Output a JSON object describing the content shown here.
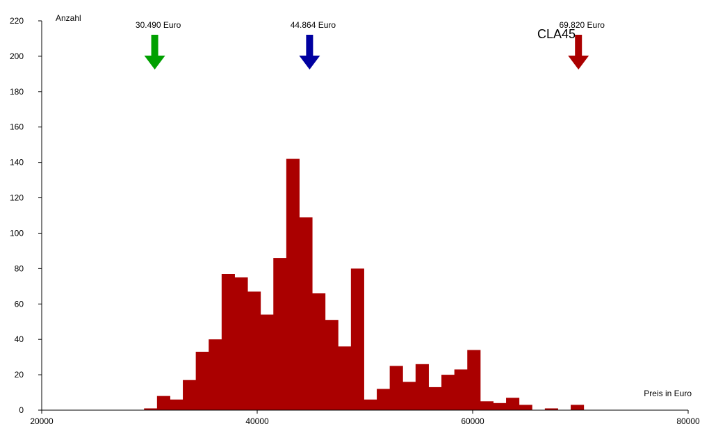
{
  "chart_data": {
    "type": "bar",
    "title": "",
    "model_label": "CLA45",
    "xlabel": "Preis in Euro",
    "ylabel": "Anzahl",
    "xlim": [
      20000,
      80000
    ],
    "ylim": [
      0,
      220
    ],
    "x_ticks": [
      20000,
      40000,
      60000,
      80000
    ],
    "y_ticks": [
      0,
      20,
      40,
      60,
      80,
      100,
      120,
      140,
      160,
      180,
      200,
      220
    ],
    "bin_width": 1200,
    "bar_color": "#aa0000",
    "bins": [
      {
        "x0": 29500,
        "value": 1
      },
      {
        "x0": 30700,
        "value": 8
      },
      {
        "x0": 31900,
        "value": 6
      },
      {
        "x0": 33100,
        "value": 17
      },
      {
        "x0": 34300,
        "value": 33
      },
      {
        "x0": 35500,
        "value": 40
      },
      {
        "x0": 36700,
        "value": 77
      },
      {
        "x0": 37900,
        "value": 75
      },
      {
        "x0": 39100,
        "value": 67
      },
      {
        "x0": 40300,
        "value": 54
      },
      {
        "x0": 41500,
        "value": 86
      },
      {
        "x0": 42700,
        "value": 142
      },
      {
        "x0": 43900,
        "value": 109
      },
      {
        "x0": 45100,
        "value": 66
      },
      {
        "x0": 46300,
        "value": 51
      },
      {
        "x0": 47500,
        "value": 36
      },
      {
        "x0": 48700,
        "value": 80
      },
      {
        "x0": 49900,
        "value": 6
      },
      {
        "x0": 51100,
        "value": 12
      },
      {
        "x0": 52300,
        "value": 25
      },
      {
        "x0": 53500,
        "value": 16
      },
      {
        "x0": 54700,
        "value": 26
      },
      {
        "x0": 55900,
        "value": 13
      },
      {
        "x0": 57100,
        "value": 20
      },
      {
        "x0": 58300,
        "value": 23
      },
      {
        "x0": 59500,
        "value": 34
      },
      {
        "x0": 60700,
        "value": 5
      },
      {
        "x0": 61900,
        "value": 4
      },
      {
        "x0": 63100,
        "value": 7
      },
      {
        "x0": 64300,
        "value": 3
      },
      {
        "x0": 65500,
        "value": 0
      },
      {
        "x0": 66700,
        "value": 1
      },
      {
        "x0": 67900,
        "value": 0
      },
      {
        "x0": 69100,
        "value": 3
      }
    ],
    "markers": [
      {
        "x": 30490,
        "label": "30.490 Euro",
        "color": "#00a000"
      },
      {
        "x": 44864,
        "label": "44.864 Euro",
        "color": "#0000a0"
      },
      {
        "x": 69820,
        "label": "69.820 Euro",
        "color": "#aa0000"
      }
    ]
  }
}
